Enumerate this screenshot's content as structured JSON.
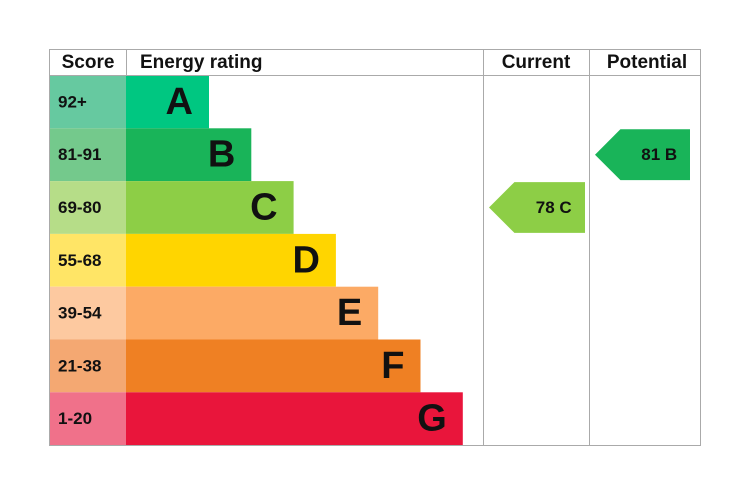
{
  "chart_data": {
    "type": "epc",
    "headers": [
      "Score",
      "Energy rating",
      "Current",
      "Potential"
    ],
    "bands": [
      {
        "range": "92+",
        "letter": "A",
        "color": "#00c781",
        "range_color": "#66c9a0"
      },
      {
        "range": "81-91",
        "letter": "B",
        "color": "#19b459",
        "range_color": "#74c98c"
      },
      {
        "range": "69-80",
        "letter": "C",
        "color": "#8dce46",
        "range_color": "#b6dd88"
      },
      {
        "range": "55-68",
        "letter": "D",
        "color": "#ffd500",
        "range_color": "#ffe566"
      },
      {
        "range": "39-54",
        "letter": "E",
        "color": "#fcaa65",
        "range_color": "#fdc9a0"
      },
      {
        "range": "21-38",
        "letter": "F",
        "color": "#ef8023",
        "range_color": "#f4a872"
      },
      {
        "range": "1-20",
        "letter": "G",
        "color": "#e9153b",
        "range_color": "#f0718a"
      }
    ],
    "current": {
      "value": 78,
      "label": "78 C",
      "color": "#8dce46"
    },
    "potential": {
      "value": 81,
      "label": "81 B",
      "color": "#19b459"
    }
  }
}
